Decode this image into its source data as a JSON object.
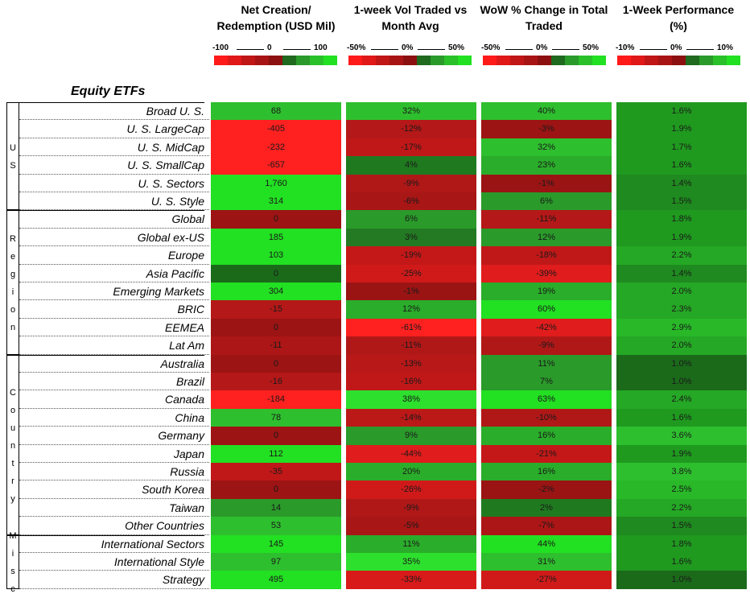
{
  "chart_data": {
    "type": "table",
    "title": "Equity ETFs",
    "columns": [
      {
        "key": "net_creation",
        "header": "Net Creation/ Redemption (USD Mil)",
        "legend_min": "-100",
        "legend_mid": "0",
        "legend_max": "100"
      },
      {
        "key": "vol_vs_avg",
        "header": "1-week Vol Traded vs Month Avg",
        "legend_min": "-50%",
        "legend_mid": "0%",
        "legend_max": "50%"
      },
      {
        "key": "wow_change",
        "header": "WoW % Change in Total Traded",
        "legend_min": "-50%",
        "legend_mid": "0%",
        "legend_max": "50%"
      },
      {
        "key": "performance",
        "header": "1-Week Performance (%)",
        "legend_min": "-10%",
        "legend_mid": "0%",
        "legend_max": "10%"
      }
    ],
    "groups": [
      {
        "label": "US",
        "letters": [
          "U",
          "S"
        ],
        "rows": [
          0,
          5
        ]
      },
      {
        "label": "Region",
        "letters": [
          "R",
          "e",
          "g",
          "i",
          "o",
          "n"
        ],
        "rows": [
          6,
          13
        ]
      },
      {
        "label": "Country",
        "letters": [
          "C",
          "o",
          "u",
          "n",
          "t",
          "r",
          "y"
        ],
        "rows": [
          14,
          23
        ]
      },
      {
        "label": "Misc",
        "letters": [
          "M",
          "i",
          "s",
          "c"
        ],
        "rows": [
          24,
          26
        ]
      }
    ],
    "rows": [
      {
        "name": "Broad U. S.",
        "values": [
          "68",
          "32%",
          "40%",
          "1.6%"
        ],
        "colors": [
          "#2ebf2e",
          "#2ebf2e",
          "#2ebf2e",
          "#1f9a1f"
        ]
      },
      {
        "name": "U. S. LargeCap",
        "values": [
          "-405",
          "-12%",
          "-3%",
          "1.9%"
        ],
        "colors": [
          "#ff2020",
          "#b51818",
          "#9c1414",
          "#1f9a1f"
        ]
      },
      {
        "name": "U. S. MidCap",
        "values": [
          "-232",
          "-17%",
          "32%",
          "1.7%"
        ],
        "colors": [
          "#ff2020",
          "#c01818",
          "#2ebf2e",
          "#1f9a1f"
        ]
      },
      {
        "name": "U. S. SmallCap",
        "values": [
          "-657",
          "4%",
          "23%",
          "1.6%"
        ],
        "colors": [
          "#ff2020",
          "#1f7a1f",
          "#2aad2a",
          "#1f9a1f"
        ]
      },
      {
        "name": "U. S. Sectors",
        "values": [
          "1,760",
          "-9%",
          "-1%",
          "1.4%"
        ],
        "colors": [
          "#22e022",
          "#b01818",
          "#9a1414",
          "#1f8a1f"
        ]
      },
      {
        "name": "U. S. Style",
        "values": [
          "314",
          "-6%",
          "6%",
          "1.5%"
        ],
        "colors": [
          "#22e022",
          "#a81616",
          "#2a9a2a",
          "#1f8a1f"
        ]
      },
      {
        "name": "Global",
        "values": [
          "0",
          "6%",
          "-11%",
          "1.8%"
        ],
        "colors": [
          "#9c1414",
          "#2a9a2a",
          "#b51818",
          "#1f9a1f"
        ]
      },
      {
        "name": "Global ex-US",
        "values": [
          "185",
          "3%",
          "12%",
          "1.9%"
        ],
        "colors": [
          "#22e022",
          "#237a23",
          "#2a9a2a",
          "#1f9a1f"
        ]
      },
      {
        "name": "Europe",
        "values": [
          "103",
          "-19%",
          "-18%",
          "2.2%"
        ],
        "colors": [
          "#22e022",
          "#c41818",
          "#c01818",
          "#25a825"
        ]
      },
      {
        "name": "Asia Pacific",
        "values": [
          "0",
          "-25%",
          "-39%",
          "1.4%"
        ],
        "colors": [
          "#1a6a1a",
          "#d01a1a",
          "#e01c1c",
          "#1f8a1f"
        ]
      },
      {
        "name": "Emerging Markets",
        "values": [
          "304",
          "-1%",
          "19%",
          "2.0%"
        ],
        "colors": [
          "#22e022",
          "#9a1414",
          "#2aad2a",
          "#25a825"
        ]
      },
      {
        "name": "BRIC",
        "values": [
          "-15",
          "12%",
          "60%",
          "2.3%"
        ],
        "colors": [
          "#b51818",
          "#2aad2a",
          "#22e022",
          "#25a825"
        ]
      },
      {
        "name": "EEMEA",
        "values": [
          "0",
          "-61%",
          "-42%",
          "2.9%"
        ],
        "colors": [
          "#9c1414",
          "#ff2020",
          "#e01c1c",
          "#28b828"
        ]
      },
      {
        "name": "Lat Am",
        "values": [
          "-11",
          "-11%",
          "-9%",
          "2.0%"
        ],
        "colors": [
          "#ac1616",
          "#b01818",
          "#b01818",
          "#25a825"
        ]
      },
      {
        "name": "Australia",
        "values": [
          "0",
          "-13%",
          "11%",
          "1.0%"
        ],
        "colors": [
          "#9c1414",
          "#b81818",
          "#2a9a2a",
          "#1a6a1a"
        ]
      },
      {
        "name": "Brazil",
        "values": [
          "-16",
          "-16%",
          "7%",
          "1.0%"
        ],
        "colors": [
          "#b51818",
          "#c01818",
          "#2a9a2a",
          "#1a6a1a"
        ]
      },
      {
        "name": "Canada",
        "values": [
          "-184",
          "38%",
          "63%",
          "2.4%"
        ],
        "colors": [
          "#ff2020",
          "#2ee02e",
          "#22e022",
          "#25a825"
        ]
      },
      {
        "name": "China",
        "values": [
          "78",
          "-14%",
          "-10%",
          "1.6%"
        ],
        "colors": [
          "#2ebf2e",
          "#bb1818",
          "#b01818",
          "#1f9a1f"
        ]
      },
      {
        "name": "Germany",
        "values": [
          "0",
          "9%",
          "16%",
          "3.6%"
        ],
        "colors": [
          "#9c1414",
          "#2a9a2a",
          "#2aad2a",
          "#2ebf2e"
        ]
      },
      {
        "name": "Japan",
        "values": [
          "112",
          "-44%",
          "-21%",
          "1.9%"
        ],
        "colors": [
          "#22e022",
          "#e01c1c",
          "#c41818",
          "#1f9a1f"
        ]
      },
      {
        "name": "Russia",
        "values": [
          "-35",
          "20%",
          "16%",
          "3.8%"
        ],
        "colors": [
          "#c01818",
          "#2aad2a",
          "#2aad2a",
          "#2ebf2e"
        ]
      },
      {
        "name": "South Korea",
        "values": [
          "0",
          "-26%",
          "-2%",
          "2.5%"
        ],
        "colors": [
          "#9c1414",
          "#d01a1a",
          "#9a1414",
          "#28b828"
        ]
      },
      {
        "name": "Taiwan",
        "values": [
          "14",
          "-9%",
          "2%",
          "2.2%"
        ],
        "colors": [
          "#2a9a2a",
          "#b01818",
          "#1f7a1f",
          "#25a825"
        ]
      },
      {
        "name": "Other Countries",
        "values": [
          "53",
          "-5%",
          "-7%",
          "1.5%"
        ],
        "colors": [
          "#2ebf2e",
          "#a81616",
          "#ac1616",
          "#1f8a1f"
        ]
      },
      {
        "name": "International Sectors",
        "values": [
          "145",
          "11%",
          "44%",
          "1.8%"
        ],
        "colors": [
          "#22e022",
          "#2aad2a",
          "#22e022",
          "#1f9a1f"
        ]
      },
      {
        "name": "International Style",
        "values": [
          "97",
          "35%",
          "31%",
          "1.6%"
        ],
        "colors": [
          "#2ebf2e",
          "#2ee02e",
          "#2ebf2e",
          "#1f9a1f"
        ]
      },
      {
        "name": "Strategy",
        "values": [
          "495",
          "-33%",
          "-27%",
          "1.0%"
        ],
        "colors": [
          "#22e022",
          "#d81a1a",
          "#d01a1a",
          "#1a6a1a"
        ]
      }
    ],
    "legend_swatches": [
      "#ff1a1a",
      "#e01818",
      "#c01616",
      "#a81414",
      "#8c1010",
      "#1f6a1f",
      "#2a9a2a",
      "#2ac02a",
      "#22e022"
    ]
  }
}
